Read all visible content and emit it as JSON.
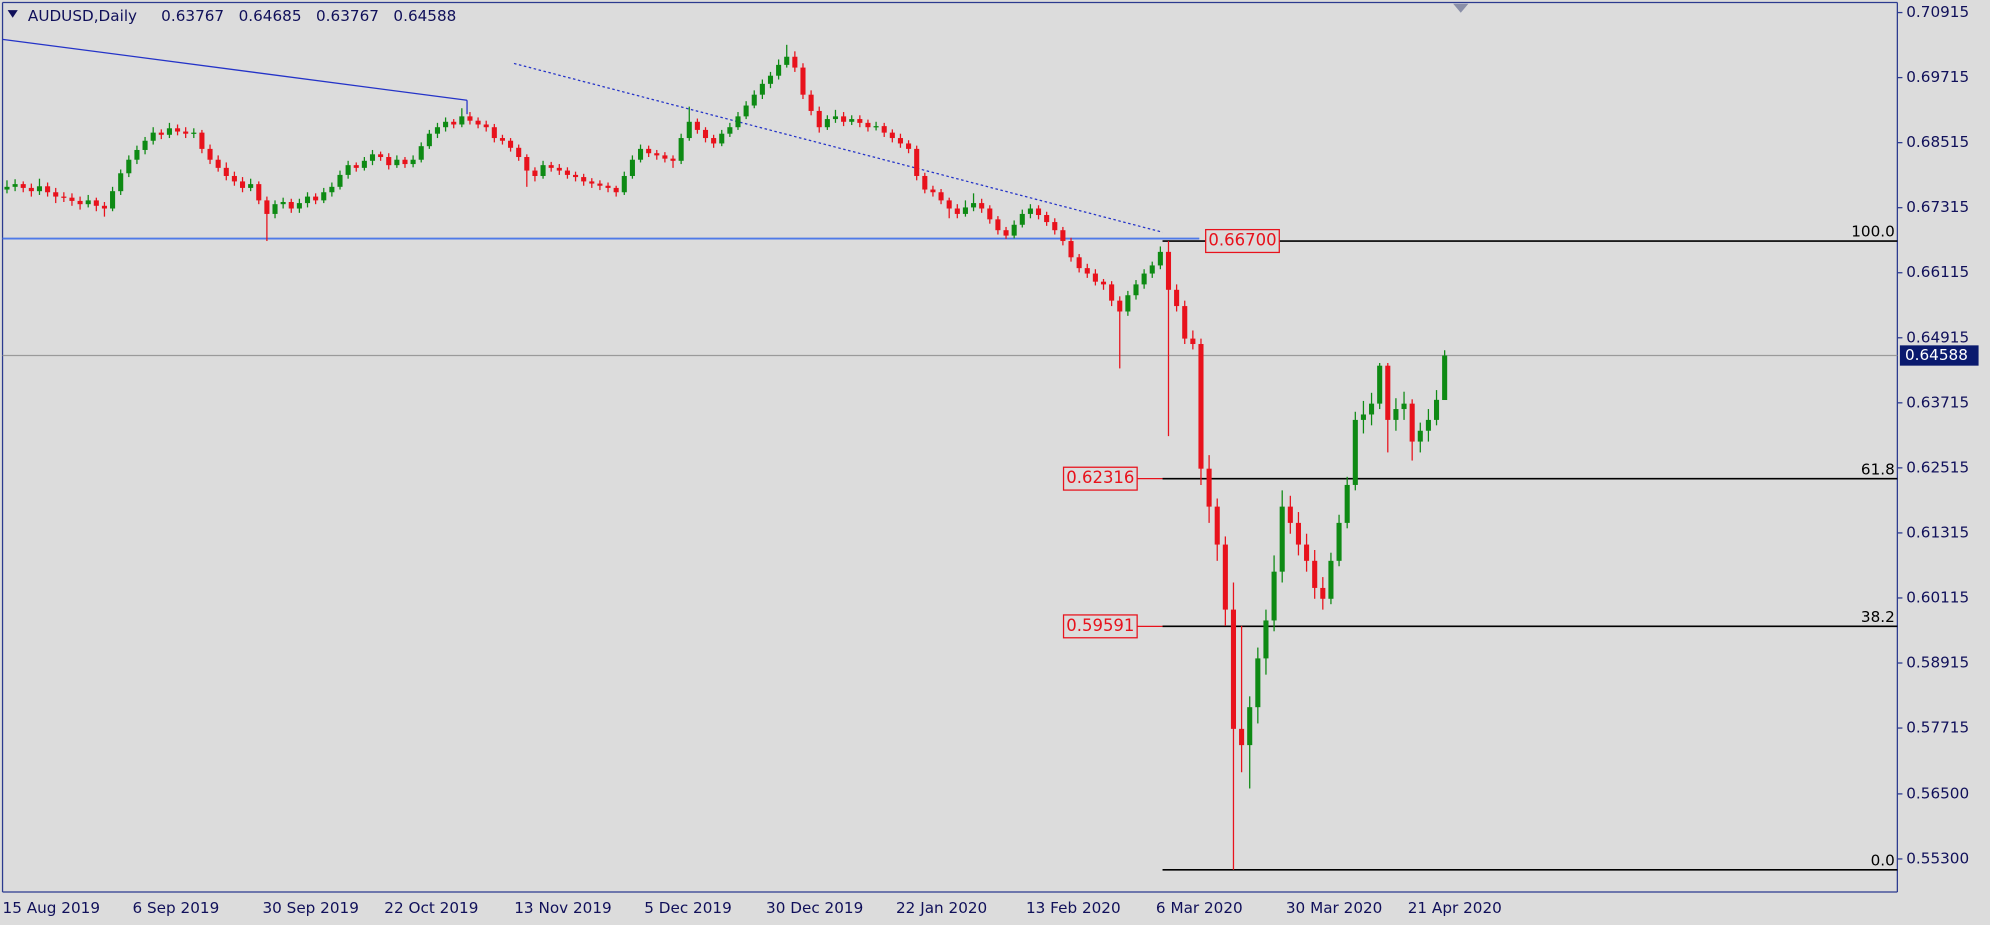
{
  "chart_data": {
    "type": "candlestick",
    "title": "AUDUSD,Daily",
    "header_ohlc": [
      0.63767,
      0.64685,
      0.63767,
      0.64588
    ],
    "last_price": 0.64588,
    "ylim": [
      0.5469,
      0.711
    ],
    "yticks": [
      0.70915,
      0.69715,
      0.68515,
      0.67315,
      0.66115,
      0.64915,
      0.63715,
      0.62515,
      0.61315,
      0.60115,
      0.58915,
      0.57715,
      {
        "value": 0.565,
        "label": "0.56500"
      },
      {
        "value": 0.553,
        "label": "0.55300"
      }
    ],
    "up_color": "#0e8a14",
    "down_color": "#e8121c",
    "categories": [
      "15 Aug 2019",
      null,
      null,
      null,
      null,
      null,
      null,
      null,
      null,
      null,
      null,
      null,
      null,
      null,
      null,
      null,
      "6 Sep 2019",
      null,
      null,
      null,
      null,
      null,
      null,
      null,
      null,
      null,
      null,
      null,
      null,
      null,
      null,
      null,
      "30 Sep 2019",
      null,
      null,
      null,
      null,
      null,
      null,
      null,
      null,
      null,
      null,
      null,
      null,
      null,
      null,
      "22 Oct 2019",
      null,
      null,
      null,
      null,
      null,
      null,
      null,
      null,
      null,
      null,
      null,
      null,
      null,
      null,
      null,
      "13 Nov 2019",
      null,
      null,
      null,
      null,
      null,
      null,
      null,
      null,
      null,
      null,
      null,
      null,
      null,
      null,
      null,
      "5 Dec 2019",
      null,
      null,
      null,
      null,
      null,
      null,
      null,
      null,
      null,
      null,
      null,
      null,
      null,
      null,
      "30 Dec 2019",
      null,
      null,
      null,
      null,
      null,
      null,
      null,
      null,
      null,
      null,
      null,
      null,
      null,
      null,
      null,
      "22 Jan 2020",
      null,
      null,
      null,
      null,
      null,
      null,
      null,
      null,
      null,
      null,
      null,
      null,
      null,
      null,
      null,
      "13 Feb 2020",
      null,
      null,
      null,
      null,
      null,
      null,
      null,
      null,
      null,
      null,
      null,
      null,
      null,
      null,
      null,
      "6 Mar 2020",
      null,
      null,
      null,
      null,
      null,
      null,
      null,
      null,
      null,
      null,
      null,
      null,
      null,
      null,
      null,
      "30 Mar 2020",
      null,
      null,
      null,
      null,
      null,
      null,
      null,
      null,
      null,
      null,
      null,
      null,
      null,
      null,
      "21 Apr 2020",
      null,
      null,
      null,
      null
    ],
    "ohlc": [
      [
        0.6765,
        0.6782,
        0.6758,
        0.677
      ],
      [
        0.677,
        0.6784,
        0.6762,
        0.6775
      ],
      [
        0.6775,
        0.678,
        0.676,
        0.6768
      ],
      [
        0.6768,
        0.6776,
        0.6752,
        0.6762
      ],
      [
        0.6762,
        0.6785,
        0.6755,
        0.6771
      ],
      [
        0.6771,
        0.6778,
        0.6752,
        0.676
      ],
      [
        0.676,
        0.6768,
        0.674,
        0.6752
      ],
      [
        0.6752,
        0.676,
        0.6742,
        0.675
      ],
      [
        0.675,
        0.6758,
        0.6735,
        0.6744
      ],
      [
        0.6744,
        0.6752,
        0.6728,
        0.6738
      ],
      [
        0.6738,
        0.6755,
        0.6732,
        0.6745
      ],
      [
        0.6745,
        0.675,
        0.6725,
        0.6735
      ],
      [
        0.6735,
        0.6742,
        0.6715,
        0.673
      ],
      [
        0.673,
        0.677,
        0.6725,
        0.6762
      ],
      [
        0.6762,
        0.6802,
        0.6755,
        0.6795
      ],
      [
        0.6795,
        0.6828,
        0.6788,
        0.682
      ],
      [
        0.682,
        0.6846,
        0.6812,
        0.6838
      ],
      [
        0.6838,
        0.6862,
        0.683,
        0.6855
      ],
      [
        0.6855,
        0.688,
        0.6848,
        0.687
      ],
      [
        0.687,
        0.6876,
        0.6858,
        0.6866
      ],
      [
        0.6866,
        0.6888,
        0.686,
        0.6878
      ],
      [
        0.6878,
        0.6885,
        0.6865,
        0.6872
      ],
      [
        0.6872,
        0.688,
        0.686,
        0.6868
      ],
      [
        0.6868,
        0.6878,
        0.686,
        0.687
      ],
      [
        0.687,
        0.6875,
        0.6832,
        0.684
      ],
      [
        0.684,
        0.6848,
        0.6812,
        0.682
      ],
      [
        0.682,
        0.6828,
        0.6798,
        0.6805
      ],
      [
        0.6805,
        0.6815,
        0.6782,
        0.679
      ],
      [
        0.679,
        0.6798,
        0.6772,
        0.678
      ],
      [
        0.678,
        0.6788,
        0.676,
        0.6768
      ],
      [
        0.6768,
        0.6785,
        0.6762,
        0.6775
      ],
      [
        0.6775,
        0.678,
        0.6738,
        0.6745
      ],
      [
        0.6745,
        0.6752,
        0.667,
        0.672
      ],
      [
        0.672,
        0.6745,
        0.6712,
        0.6738
      ],
      [
        0.6738,
        0.675,
        0.673,
        0.6742
      ],
      [
        0.6742,
        0.6748,
        0.6722,
        0.673
      ],
      [
        0.673,
        0.6748,
        0.6722,
        0.674
      ],
      [
        0.674,
        0.676,
        0.6732,
        0.6752
      ],
      [
        0.6752,
        0.6758,
        0.6738,
        0.6745
      ],
      [
        0.6745,
        0.6768,
        0.674,
        0.676
      ],
      [
        0.676,
        0.6778,
        0.6752,
        0.677
      ],
      [
        0.677,
        0.68,
        0.6765,
        0.6792
      ],
      [
        0.6792,
        0.6818,
        0.6785,
        0.681
      ],
      [
        0.681,
        0.6815,
        0.6798,
        0.6805
      ],
      [
        0.6805,
        0.6825,
        0.68,
        0.6818
      ],
      [
        0.6818,
        0.6838,
        0.681,
        0.683
      ],
      [
        0.683,
        0.6835,
        0.6818,
        0.6825
      ],
      [
        0.6825,
        0.6832,
        0.6802,
        0.681
      ],
      [
        0.681,
        0.6828,
        0.6805,
        0.682
      ],
      [
        0.682,
        0.6825,
        0.6805,
        0.6812
      ],
      [
        0.6812,
        0.6828,
        0.6806,
        0.682
      ],
      [
        0.682,
        0.6852,
        0.6815,
        0.6845
      ],
      [
        0.6845,
        0.6875,
        0.684,
        0.6868
      ],
      [
        0.6868,
        0.6888,
        0.686,
        0.688
      ],
      [
        0.688,
        0.6898,
        0.6872,
        0.689
      ],
      [
        0.689,
        0.6895,
        0.6878,
        0.6885
      ],
      [
        0.6885,
        0.6915,
        0.688,
        0.69
      ],
      [
        0.69,
        0.6908,
        0.6885,
        0.6892
      ],
      [
        0.6892,
        0.6898,
        0.6878,
        0.6885
      ],
      [
        0.6885,
        0.6892,
        0.6872,
        0.688
      ],
      [
        0.688,
        0.6886,
        0.6852,
        0.686
      ],
      [
        0.686,
        0.6866,
        0.6848,
        0.6855
      ],
      [
        0.6855,
        0.686,
        0.6835,
        0.6842
      ],
      [
        0.6842,
        0.6848,
        0.6818,
        0.6825
      ],
      [
        0.6825,
        0.683,
        0.677,
        0.68
      ],
      [
        0.68,
        0.6806,
        0.678,
        0.679
      ],
      [
        0.679,
        0.6818,
        0.6785,
        0.681
      ],
      [
        0.681,
        0.6816,
        0.6798,
        0.6805
      ],
      [
        0.6805,
        0.6812,
        0.6792,
        0.68
      ],
      [
        0.68,
        0.6806,
        0.6785,
        0.6792
      ],
      [
        0.6792,
        0.6798,
        0.678,
        0.6788
      ],
      [
        0.6788,
        0.6794,
        0.6772,
        0.678
      ],
      [
        0.678,
        0.6786,
        0.6768,
        0.6776
      ],
      [
        0.6776,
        0.6782,
        0.6764,
        0.6772
      ],
      [
        0.6772,
        0.6778,
        0.676,
        0.6768
      ],
      [
        0.6768,
        0.6772,
        0.6752,
        0.676
      ],
      [
        0.676,
        0.6798,
        0.6755,
        0.679
      ],
      [
        0.679,
        0.6828,
        0.6785,
        0.682
      ],
      [
        0.682,
        0.6848,
        0.6815,
        0.684
      ],
      [
        0.684,
        0.6846,
        0.6825,
        0.6832
      ],
      [
        0.6832,
        0.6838,
        0.682,
        0.6828
      ],
      [
        0.6828,
        0.6834,
        0.6815,
        0.6822
      ],
      [
        0.6822,
        0.6828,
        0.6805,
        0.6818
      ],
      [
        0.6818,
        0.6868,
        0.6812,
        0.686
      ],
      [
        0.686,
        0.6918,
        0.6855,
        0.689
      ],
      [
        0.689,
        0.6896,
        0.6868,
        0.6875
      ],
      [
        0.6875,
        0.688,
        0.6852,
        0.686
      ],
      [
        0.686,
        0.6866,
        0.6842,
        0.685
      ],
      [
        0.685,
        0.6875,
        0.6845,
        0.6868
      ],
      [
        0.6868,
        0.6888,
        0.6862,
        0.688
      ],
      [
        0.688,
        0.6908,
        0.6875,
        0.69
      ],
      [
        0.69,
        0.6928,
        0.6895,
        0.692
      ],
      [
        0.692,
        0.6948,
        0.6915,
        0.694
      ],
      [
        0.694,
        0.6968,
        0.6932,
        0.696
      ],
      [
        0.696,
        0.6982,
        0.6952,
        0.6975
      ],
      [
        0.6975,
        0.7005,
        0.6968,
        0.6995
      ],
      [
        0.6995,
        0.7032,
        0.699,
        0.701
      ],
      [
        0.701,
        0.702,
        0.6982,
        0.699
      ],
      [
        0.699,
        0.6998,
        0.6932,
        0.694
      ],
      [
        0.694,
        0.6948,
        0.6902,
        0.691
      ],
      [
        0.691,
        0.6918,
        0.687,
        0.688
      ],
      [
        0.688,
        0.6902,
        0.6875,
        0.6895
      ],
      [
        0.6895,
        0.6912,
        0.6888,
        0.69
      ],
      [
        0.69,
        0.6908,
        0.6882,
        0.689
      ],
      [
        0.689,
        0.6902,
        0.6884,
        0.6895
      ],
      [
        0.6895,
        0.6902,
        0.688,
        0.6888
      ],
      [
        0.6888,
        0.6894,
        0.6872,
        0.688
      ],
      [
        0.688,
        0.689,
        0.6874,
        0.6882
      ],
      [
        0.6882,
        0.6888,
        0.6862,
        0.687
      ],
      [
        0.687,
        0.6876,
        0.6852,
        0.686
      ],
      [
        0.686,
        0.6868,
        0.6842,
        0.685
      ],
      [
        0.685,
        0.6856,
        0.6832,
        0.684
      ],
      [
        0.684,
        0.6846,
        0.6782,
        0.679
      ],
      [
        0.679,
        0.6796,
        0.6758,
        0.6765
      ],
      [
        0.6765,
        0.6772,
        0.6752,
        0.676
      ],
      [
        0.676,
        0.6766,
        0.6738,
        0.6745
      ],
      [
        0.6745,
        0.675,
        0.6712,
        0.673
      ],
      [
        0.673,
        0.6738,
        0.6712,
        0.672
      ],
      [
        0.672,
        0.6745,
        0.6715,
        0.6732
      ],
      [
        0.6732,
        0.6758,
        0.6725,
        0.674
      ],
      [
        0.674,
        0.6748,
        0.6722,
        0.673
      ],
      [
        0.673,
        0.6736,
        0.6702,
        0.671
      ],
      [
        0.671,
        0.6716,
        0.6682,
        0.669
      ],
      [
        0.669,
        0.6696,
        0.6674,
        0.668
      ],
      [
        0.668,
        0.6708,
        0.6675,
        0.67
      ],
      [
        0.67,
        0.6728,
        0.6695,
        0.672
      ],
      [
        0.672,
        0.6738,
        0.6712,
        0.673
      ],
      [
        0.673,
        0.6736,
        0.671,
        0.6718
      ],
      [
        0.6718,
        0.6724,
        0.6698,
        0.6705
      ],
      [
        0.6705,
        0.6712,
        0.6682,
        0.669
      ],
      [
        0.669,
        0.6696,
        0.6662,
        0.667
      ],
      [
        0.667,
        0.6676,
        0.6632,
        0.664
      ],
      [
        0.664,
        0.6646,
        0.6612,
        0.662
      ],
      [
        0.662,
        0.6628,
        0.6602,
        0.661
      ],
      [
        0.661,
        0.6618,
        0.6588,
        0.6595
      ],
      [
        0.6595,
        0.66,
        0.658,
        0.659
      ],
      [
        0.659,
        0.6596,
        0.655,
        0.656
      ],
      [
        0.656,
        0.6568,
        0.6435,
        0.654
      ],
      [
        0.654,
        0.6578,
        0.6532,
        0.657
      ],
      [
        0.657,
        0.6598,
        0.6562,
        0.659
      ],
      [
        0.659,
        0.6618,
        0.6582,
        0.661
      ],
      [
        0.661,
        0.6632,
        0.6602,
        0.6625
      ],
      [
        0.6625,
        0.666,
        0.6618,
        0.665
      ],
      [
        0.665,
        0.667,
        0.631,
        0.658
      ],
      [
        0.658,
        0.659,
        0.654,
        0.655
      ],
      [
        0.655,
        0.656,
        0.648,
        0.649
      ],
      [
        0.649,
        0.6505,
        0.647,
        0.648
      ],
      [
        0.648,
        0.649,
        0.622,
        0.625
      ],
      [
        0.625,
        0.6275,
        0.615,
        0.618
      ],
      [
        0.618,
        0.6195,
        0.608,
        0.611
      ],
      [
        0.611,
        0.6125,
        0.596,
        0.599
      ],
      [
        0.599,
        0.604,
        0.551,
        0.577
      ],
      [
        0.577,
        0.596,
        0.569,
        0.574
      ],
      [
        0.574,
        0.583,
        0.566,
        0.581
      ],
      [
        0.581,
        0.592,
        0.578,
        0.59
      ],
      [
        0.59,
        0.599,
        0.587,
        0.597
      ],
      [
        0.597,
        0.609,
        0.595,
        0.606
      ],
      [
        0.606,
        0.621,
        0.604,
        0.618
      ],
      [
        0.618,
        0.62,
        0.613,
        0.615
      ],
      [
        0.615,
        0.617,
        0.609,
        0.611
      ],
      [
        0.611,
        0.613,
        0.606,
        0.608
      ],
      [
        0.608,
        0.61,
        0.601,
        0.603
      ],
      [
        0.603,
        0.605,
        0.599,
        0.601
      ],
      [
        0.601,
        0.6095,
        0.6,
        0.608
      ],
      [
        0.608,
        0.6165,
        0.607,
        0.615
      ],
      [
        0.615,
        0.6235,
        0.614,
        0.622
      ],
      [
        0.622,
        0.6355,
        0.621,
        0.634
      ],
      [
        0.634,
        0.6375,
        0.6315,
        0.635
      ],
      [
        0.635,
        0.639,
        0.633,
        0.637
      ],
      [
        0.637,
        0.6445,
        0.636,
        0.644
      ],
      [
        0.644,
        0.6445,
        0.628,
        0.634
      ],
      [
        0.634,
        0.638,
        0.632,
        0.636
      ],
      [
        0.636,
        0.6392,
        0.634,
        0.637
      ],
      [
        0.637,
        0.6378,
        0.6265,
        0.63
      ],
      [
        0.63,
        0.6335,
        0.628,
        0.632
      ],
      [
        0.632,
        0.636,
        0.63,
        0.634
      ],
      [
        0.634,
        0.6395,
        0.633,
        0.6377
      ],
      [
        0.63767,
        0.64685,
        0.63767,
        0.64588
      ]
    ],
    "fibonacci": [
      {
        "level": {
          "value": 100,
          "label": "100.0"
        },
        "price": 0.667
      },
      {
        "level": 61.8,
        "price": 0.62316
      },
      {
        "level": 38.2,
        "price": 0.59591
      },
      {
        "level": {
          "value": 0,
          "label": "0.0"
        },
        "price": 0.551
      }
    ],
    "price_labels": [
      {
        "value": 0.667,
        "label": "0.66700"
      },
      0.62316,
      0.59591
    ]
  }
}
